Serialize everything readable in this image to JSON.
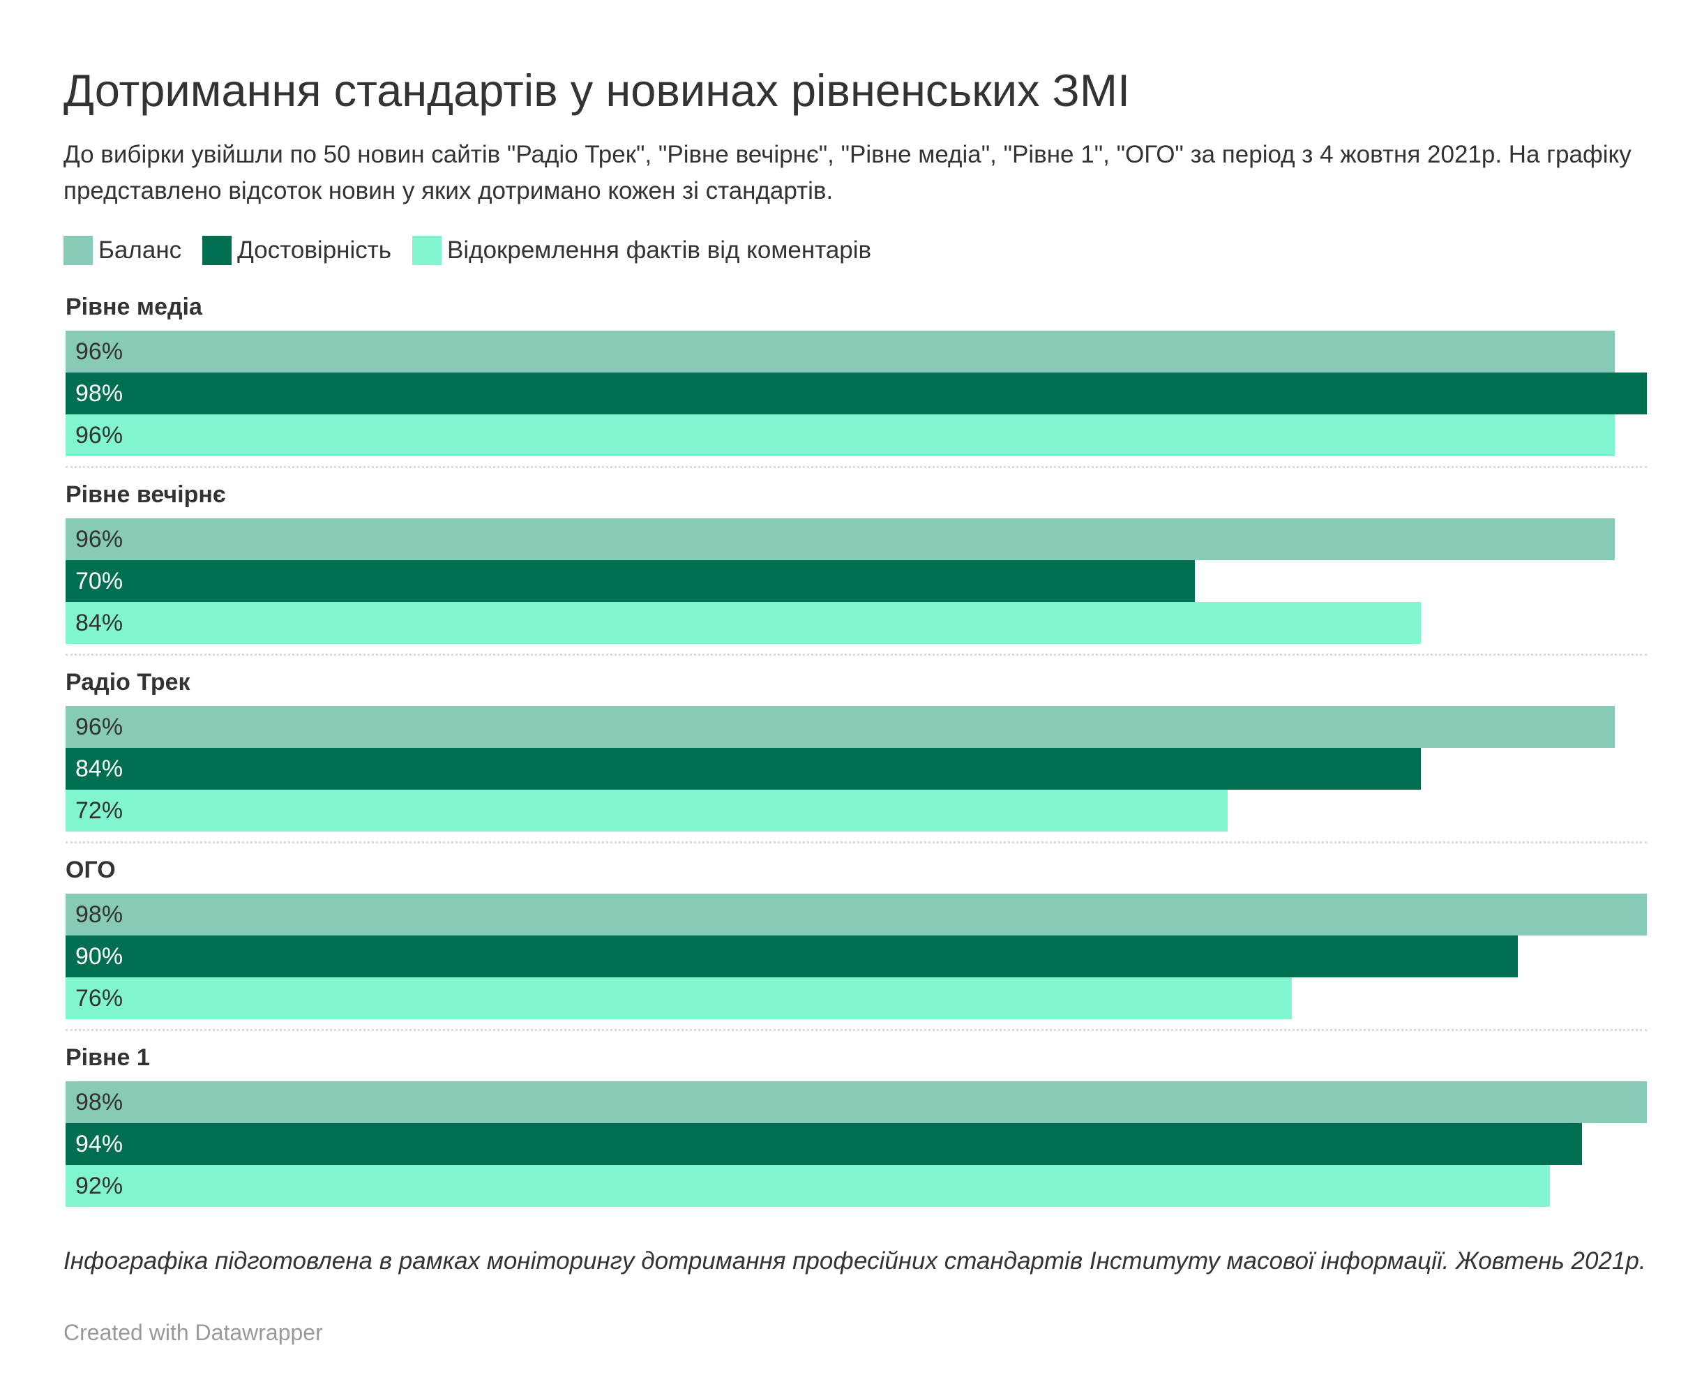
{
  "chart_data": {
    "type": "bar",
    "orientation": "horizontal",
    "title": "Дотримання стандартів у новинах рівненських ЗМІ",
    "subtitle": "До вибірки увійшли по 50 новин сайтів \"Радіо Трек\", \"Рівне вечірнє\", \"Рівне медіа\", \"Рівне 1\", \"ОГО\" за період з 4 жовтня 2021р. На графіку представлено відсоток новин у яких дотримано кожен зі стандартів.",
    "categories": [
      "Рівне медіа",
      "Рівне вечірнє",
      "Радіо Трек",
      "ОГО",
      "Рівне 1"
    ],
    "series": [
      {
        "name": "Баланс",
        "color": "#88cab8",
        "label_color": "#333333",
        "values": [
          96,
          96,
          96,
          98,
          98
        ]
      },
      {
        "name": "Достовірність",
        "color": "#006f51",
        "label_color": "#ffffff",
        "values": [
          98,
          70,
          84,
          90,
          94
        ]
      },
      {
        "name": "Відокремлення фактів від коментарів",
        "color": "#80f5cf",
        "label_color": "#333333",
        "values": [
          96,
          84,
          72,
          76,
          92
        ]
      }
    ],
    "value_suffix": "%",
    "xlim": [
      0,
      98
    ],
    "legend_position": "top-left",
    "grid": false,
    "notes": "Інфографіка підготовлена в рамках моніторингу дотримання професійних стандартів Інституту масової інформації. Жовтень 2021р.",
    "byline": "Created with Datawrapper"
  }
}
